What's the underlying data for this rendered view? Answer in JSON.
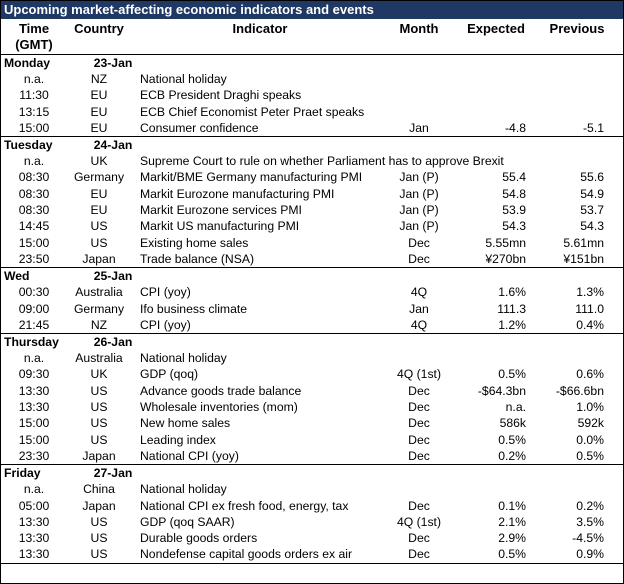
{
  "title": "Upcoming market-affecting economic indicators and events",
  "columns": {
    "time": "Time",
    "time_sub": "(GMT)",
    "country": "Country",
    "indicator": "Indicator",
    "month": "Month",
    "expected": "Expected",
    "previous": "Previous"
  },
  "days": [
    {
      "day": "Monday",
      "date": "23-Jan",
      "rows": [
        {
          "time": "n.a.",
          "country": "NZ",
          "indicator": "National holiday",
          "month": "",
          "expected": "",
          "previous": ""
        },
        {
          "time": "11:30",
          "country": "EU",
          "indicator": "ECB President Draghi speaks",
          "month": "",
          "expected": "",
          "previous": ""
        },
        {
          "time": "13:15",
          "country": "EU",
          "indicator": "ECB Chief Economist Peter Praet speaks",
          "month": "",
          "expected": "",
          "previous": ""
        },
        {
          "time": "15:00",
          "country": "EU",
          "indicator": "Consumer confidence",
          "month": "Jan",
          "expected": "-4.8",
          "previous": "-5.1"
        }
      ]
    },
    {
      "day": "Tuesday",
      "date": "24-Jan",
      "rows": [
        {
          "time": "n.a.",
          "country": "UK",
          "indicator": "Supreme Court to rule on whether Parliament has to approve Brexit",
          "month": "",
          "expected": "",
          "previous": ""
        },
        {
          "time": "08:30",
          "country": "Germany",
          "indicator": "Markit/BME Germany manufacturing PMI",
          "month": "Jan (P)",
          "expected": "55.4",
          "previous": "55.6"
        },
        {
          "time": "08:30",
          "country": "EU",
          "indicator": "Markit Eurozone manufacturing PMI",
          "month": "Jan (P)",
          "expected": "54.8",
          "previous": "54.9"
        },
        {
          "time": "08:30",
          "country": "EU",
          "indicator": "Markit Eurozone services PMI",
          "month": "Jan (P)",
          "expected": "53.9",
          "previous": "53.7"
        },
        {
          "time": "14:45",
          "country": "US",
          "indicator": "Markit US manufacturing PMI",
          "month": "Jan (P)",
          "expected": "54.3",
          "previous": "54.3"
        },
        {
          "time": "15:00",
          "country": "US",
          "indicator": "Existing home sales",
          "month": "Dec",
          "expected": "5.55mn",
          "previous": "5.61mn"
        },
        {
          "time": "23:50",
          "country": "Japan",
          "indicator": "Trade balance (NSA)",
          "month": "Dec",
          "expected": "¥270bn",
          "previous": "¥151bn"
        }
      ]
    },
    {
      "day": "Wed",
      "date": "25-Jan",
      "rows": [
        {
          "time": "00:30",
          "country": "Australia",
          "indicator": "CPI (yoy)",
          "month": "4Q",
          "expected": "1.6%",
          "previous": "1.3%"
        },
        {
          "time": "09:00",
          "country": "Germany",
          "indicator": "Ifo business climate",
          "month": "Jan",
          "expected": "111.3",
          "previous": "111.0"
        },
        {
          "time": "21:45",
          "country": "NZ",
          "indicator": "CPI (yoy)",
          "month": "4Q",
          "expected": "1.2%",
          "previous": "0.4%"
        }
      ]
    },
    {
      "day": "Thursday",
      "date": "26-Jan",
      "rows": [
        {
          "time": "n.a.",
          "country": "Australia",
          "indicator": "National holiday",
          "month": "",
          "expected": "",
          "previous": ""
        },
        {
          "time": "09:30",
          "country": "UK",
          "indicator": "GDP (qoq)",
          "month": "4Q (1st)",
          "expected": "0.5%",
          "previous": "0.6%"
        },
        {
          "time": "13:30",
          "country": "US",
          "indicator": "Advance goods trade balance",
          "month": "Dec",
          "expected": "-$64.3bn",
          "previous": "-$66.6bn"
        },
        {
          "time": "13:30",
          "country": "US",
          "indicator": "Wholesale inventories (mom)",
          "month": "Dec",
          "expected": "n.a.",
          "previous": "1.0%"
        },
        {
          "time": "15:00",
          "country": "US",
          "indicator": "New home sales",
          "month": "Dec",
          "expected": "586k",
          "previous": "592k"
        },
        {
          "time": "15:00",
          "country": "US",
          "indicator": "Leading index",
          "month": "Dec",
          "expected": "0.5%",
          "previous": "0.0%"
        },
        {
          "time": "23:30",
          "country": "Japan",
          "indicator": "National CPI (yoy)",
          "month": "Dec",
          "expected": "0.2%",
          "previous": "0.5%"
        }
      ]
    },
    {
      "day": "Friday",
      "date": "27-Jan",
      "rows": [
        {
          "time": "n.a.",
          "country": "China",
          "indicator": "National holiday",
          "month": "",
          "expected": "",
          "previous": ""
        },
        {
          "time": "05:00",
          "country": "Japan",
          "indicator": "National CPI ex fresh food, energy, tax",
          "month": "Dec",
          "expected": "0.1%",
          "previous": "0.2%"
        },
        {
          "time": "13:30",
          "country": "US",
          "indicator": "GDP (qoq SAAR)",
          "month": "4Q (1st)",
          "expected": "2.1%",
          "previous": "3.5%"
        },
        {
          "time": "13:30",
          "country": "US",
          "indicator": "Durable goods orders",
          "month": "Dec",
          "expected": "2.9%",
          "previous": "-4.5%"
        },
        {
          "time": "13:30",
          "country": "US",
          "indicator": "Nondefense capital goods orders ex air",
          "month": "Dec",
          "expected": "0.5%",
          "previous": "0.9%"
        }
      ]
    }
  ]
}
